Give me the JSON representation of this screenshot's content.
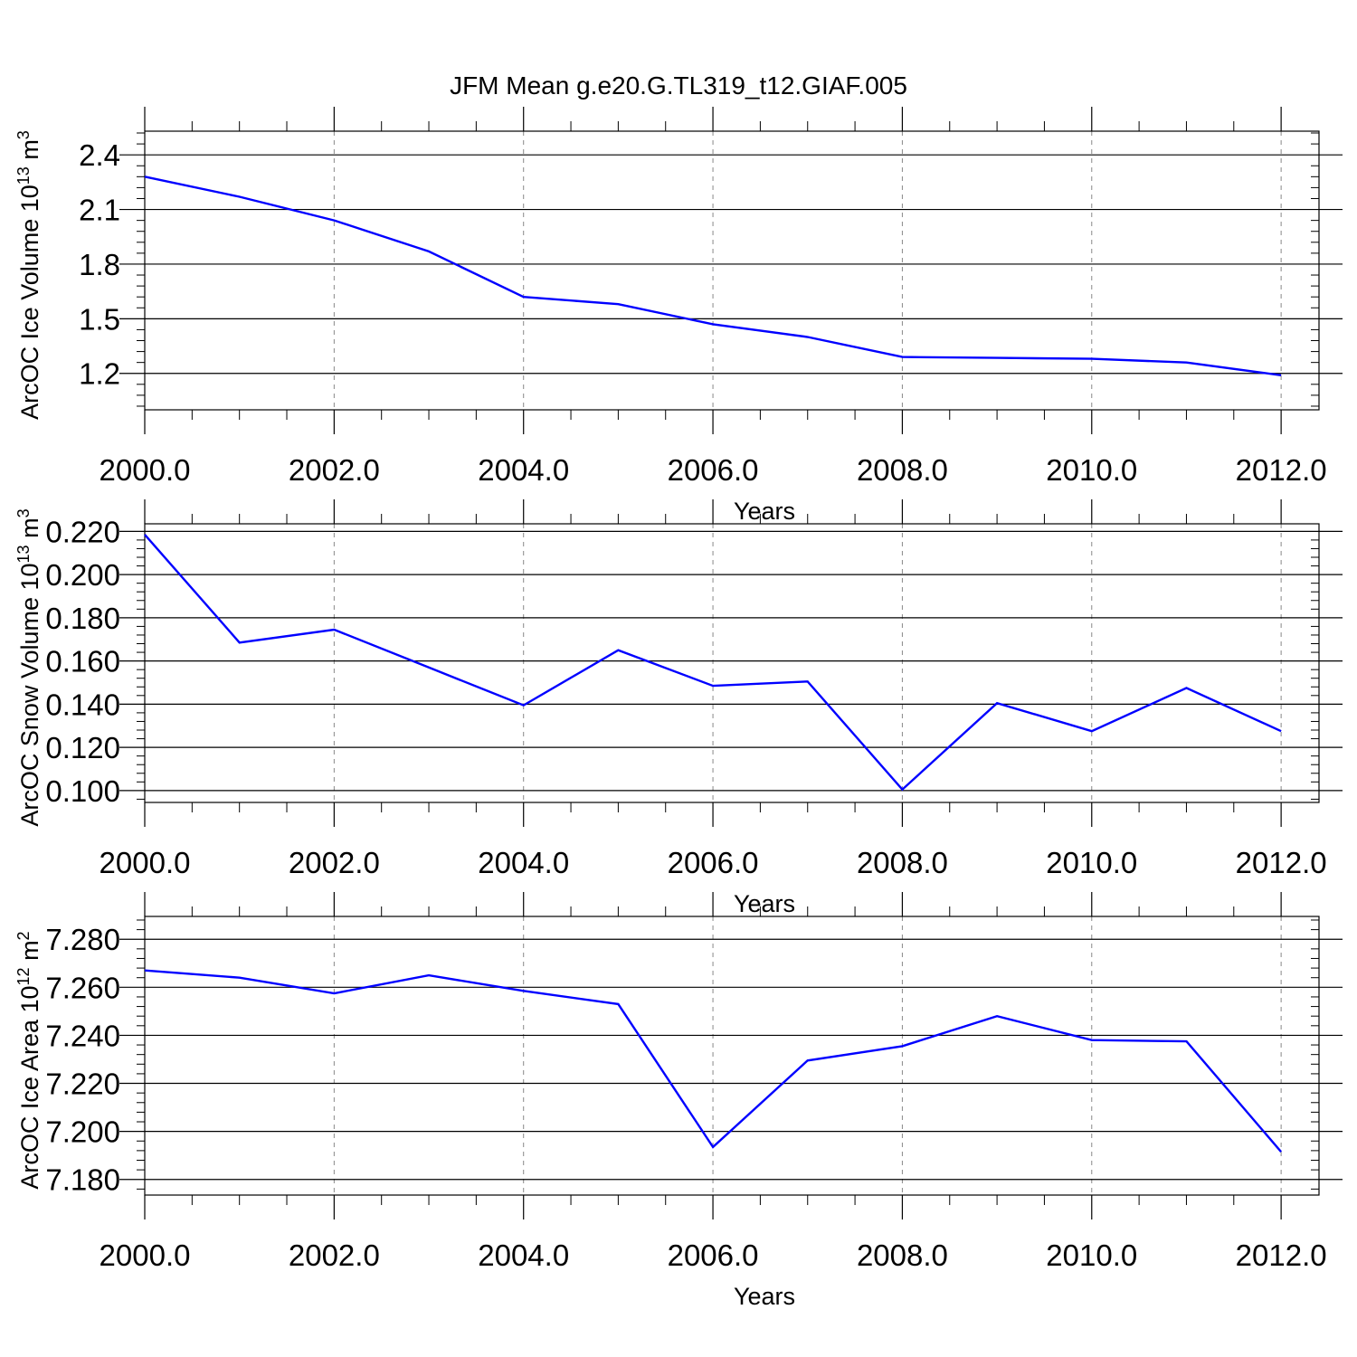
{
  "title": "JFM Mean g.e20.G.TL319_t12.GIAF.005",
  "colors": {
    "series": "#0000ff",
    "axes": "#000000",
    "grid": "#888888",
    "background": "#ffffff"
  },
  "chart_data": [
    {
      "type": "line",
      "title": "JFM Mean g.e20.G.TL319_t12.GIAF.005",
      "xlabel": "Years",
      "ylabel": {
        "text": "ArcOC Ice Volume 10",
        "exp1": "13",
        "mid": " m",
        "exp2": "3"
      },
      "x": [
        2000,
        2001,
        2002,
        2003,
        2004,
        2005,
        2006,
        2007,
        2008,
        2009,
        2010,
        2011,
        2012
      ],
      "series": [
        {
          "values": [
            2.28,
            2.17,
            2.04,
            1.87,
            1.62,
            1.58,
            1.47,
            1.4,
            1.29,
            1.285,
            1.28,
            1.26,
            1.19
          ]
        }
      ],
      "xlim": [
        2000,
        2012.4
      ],
      "ylim": [
        1.0,
        2.53
      ],
      "xticks": [
        "2000.0",
        "2002.0",
        "2004.0",
        "2006.0",
        "2008.0",
        "2010.0",
        "2012.0"
      ],
      "yticks": [
        "1.2",
        "1.5",
        "1.8",
        "2.1",
        "2.4"
      ],
      "grid": "x-dashed"
    },
    {
      "type": "line",
      "xlabel": "Years",
      "ylabel": {
        "text": "ArcOC Snow Volume 10",
        "exp1": "13",
        "mid": " m",
        "exp2": "3"
      },
      "x": [
        2000,
        2001,
        2002,
        2003,
        2004,
        2005,
        2006,
        2007,
        2008,
        2009,
        2010,
        2011,
        2012
      ],
      "series": [
        {
          "values": [
            0.2185,
            0.1685,
            0.1745,
            0.157,
            0.1395,
            0.165,
            0.1485,
            0.1505,
            0.1005,
            0.1405,
            0.1275,
            0.1475,
            0.1275
          ]
        }
      ],
      "xlim": [
        2000,
        2012.4
      ],
      "ylim": [
        0.0945,
        0.2235
      ],
      "xticks": [
        "2000.0",
        "2002.0",
        "2004.0",
        "2006.0",
        "2008.0",
        "2010.0",
        "2012.0"
      ],
      "yticks": [
        "0.100",
        "0.120",
        "0.140",
        "0.160",
        "0.180",
        "0.200",
        "0.220"
      ],
      "grid": "x-dashed"
    },
    {
      "type": "line",
      "xlabel": "Years",
      "ylabel": {
        "text": "ArcOC Ice Area 10",
        "exp1": "12",
        "mid": " m",
        "exp2": "2"
      },
      "x": [
        2000,
        2001,
        2002,
        2003,
        2004,
        2005,
        2006,
        2007,
        2008,
        2009,
        2010,
        2011,
        2012
      ],
      "series": [
        {
          "values": [
            7.267,
            7.264,
            7.2575,
            7.265,
            7.2585,
            7.253,
            7.1935,
            7.2295,
            7.2355,
            7.248,
            7.238,
            7.2375,
            7.1915
          ]
        }
      ],
      "xlim": [
        2000,
        2012.4
      ],
      "ylim": [
        7.1735,
        7.2895
      ],
      "xticks": [
        "2000.0",
        "2002.0",
        "2004.0",
        "2006.0",
        "2008.0",
        "2010.0",
        "2012.0"
      ],
      "yticks": [
        "7.180",
        "7.200",
        "7.220",
        "7.240",
        "7.260",
        "7.280"
      ],
      "grid": "x-dashed"
    }
  ]
}
